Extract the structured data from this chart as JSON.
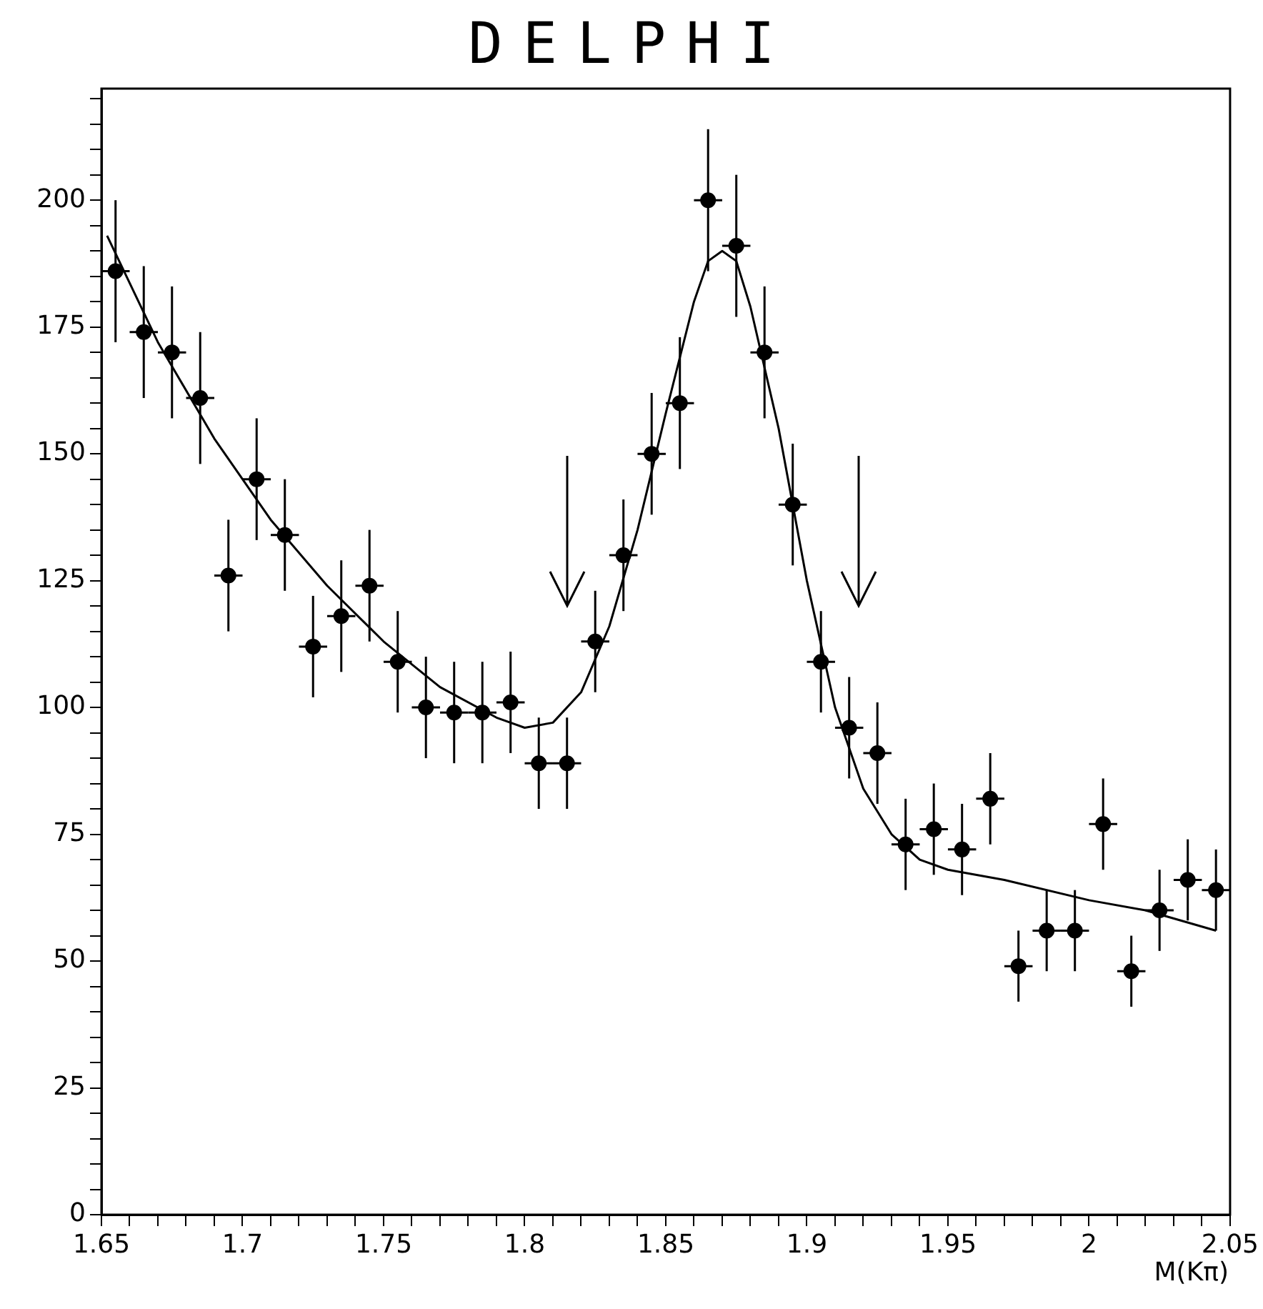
{
  "chart_data": {
    "type": "scatter",
    "title": "DELPHI",
    "xlabel": "M(Kπ)",
    "xlim": [
      1.65,
      2.05
    ],
    "ylim": [
      0,
      222
    ],
    "xticks": [
      {
        "value": 1.65,
        "label": "1.65"
      },
      {
        "value": 1.66,
        "label": null
      },
      {
        "value": 1.67,
        "label": null
      },
      {
        "value": 1.68,
        "label": null
      },
      {
        "value": 1.69,
        "label": null
      },
      {
        "value": 1.7,
        "label": "1.7"
      },
      {
        "value": 1.71,
        "label": null
      },
      {
        "value": 1.72,
        "label": null
      },
      {
        "value": 1.73,
        "label": null
      },
      {
        "value": 1.74,
        "label": null
      },
      {
        "value": 1.75,
        "label": "1.75"
      },
      {
        "value": 1.76,
        "label": null
      },
      {
        "value": 1.77,
        "label": null
      },
      {
        "value": 1.78,
        "label": null
      },
      {
        "value": 1.79,
        "label": null
      },
      {
        "value": 1.8,
        "label": "1.8"
      },
      {
        "value": 1.81,
        "label": null
      },
      {
        "value": 1.82,
        "label": null
      },
      {
        "value": 1.83,
        "label": null
      },
      {
        "value": 1.84,
        "label": null
      },
      {
        "value": 1.85,
        "label": "1.85"
      },
      {
        "value": 1.86,
        "label": null
      },
      {
        "value": 1.87,
        "label": null
      },
      {
        "value": 1.88,
        "label": null
      },
      {
        "value": 1.89,
        "label": null
      },
      {
        "value": 1.9,
        "label": "1.9"
      },
      {
        "value": 1.91,
        "label": null
      },
      {
        "value": 1.92,
        "label": null
      },
      {
        "value": 1.93,
        "label": null
      },
      {
        "value": 1.94,
        "label": null
      },
      {
        "value": 1.95,
        "label": "1.95"
      },
      {
        "value": 1.96,
        "label": null
      },
      {
        "value": 1.97,
        "label": null
      },
      {
        "value": 1.98,
        "label": null
      },
      {
        "value": 1.99,
        "label": null
      },
      {
        "value": 2,
        "label": "2"
      },
      {
        "value": 2.01,
        "label": null
      },
      {
        "value": 2.02,
        "label": null
      },
      {
        "value": 2.03,
        "label": null
      },
      {
        "value": 2.04,
        "label": null
      },
      {
        "value": 2.05,
        "label": "2.05"
      }
    ],
    "yticks": [
      0,
      {
        "value": 5,
        "label": null
      },
      {
        "value": 10,
        "label": null
      },
      {
        "value": 15,
        "label": null
      },
      {
        "value": 20,
        "label": null
      },
      25,
      {
        "value": 30,
        "label": null
      },
      {
        "value": 35,
        "label": null
      },
      {
        "value": 40,
        "label": null
      },
      {
        "value": 45,
        "label": null
      },
      50,
      {
        "value": 55,
        "label": null
      },
      {
        "value": 60,
        "label": null
      },
      {
        "value": 65,
        "label": null
      },
      {
        "value": 70,
        "label": null
      },
      75,
      {
        "value": 80,
        "label": null
      },
      {
        "value": 85,
        "label": null
      },
      {
        "value": 90,
        "label": null
      },
      {
        "value": 95,
        "label": null
      },
      100,
      {
        "value": 105,
        "label": null
      },
      {
        "value": 110,
        "label": null
      },
      {
        "value": 115,
        "label": null
      },
      {
        "value": 120,
        "label": null
      },
      125,
      {
        "value": 130,
        "label": null
      },
      {
        "value": 135,
        "label": null
      },
      {
        "value": 140,
        "label": null
      },
      {
        "value": 145,
        "label": null
      },
      150,
      {
        "value": 155,
        "label": null
      },
      {
        "value": 160,
        "label": null
      },
      {
        "value": 165,
        "label": null
      },
      {
        "value": 170,
        "label": null
      },
      175,
      {
        "value": 180,
        "label": null
      },
      {
        "value": 185,
        "label": null
      },
      {
        "value": 190,
        "label": null
      },
      {
        "value": 195,
        "label": null
      },
      200,
      {
        "value": 205,
        "label": null
      },
      {
        "value": 210,
        "label": null
      },
      {
        "value": 215,
        "label": null
      },
      {
        "value": 220,
        "label": null
      }
    ],
    "grid": false,
    "legend": false,
    "marker": "circle",
    "series": [
      {
        "color": "#000000",
        "x": [
          1.655,
          1.665,
          1.675,
          1.685,
          1.695,
          1.705,
          1.715,
          1.725,
          1.735,
          1.745,
          1.755,
          1.765,
          1.775,
          1.785,
          1.795,
          1.805,
          1.815,
          1.825,
          1.835,
          1.845,
          1.855,
          1.865,
          1.875,
          1.885,
          1.895,
          1.905,
          1.915,
          1.925,
          1.935,
          1.945,
          1.955,
          1.965,
          1.975,
          1.985,
          1.995,
          2.005,
          2.015,
          2.025,
          2.035,
          2.045
        ],
        "values": [
          186,
          174,
          170,
          161,
          126,
          145,
          134,
          112,
          118,
          124,
          109,
          100,
          99,
          99,
          101,
          89,
          89,
          113,
          130,
          150,
          160,
          200,
          191,
          170,
          140,
          109,
          96,
          91,
          73,
          76,
          72,
          82,
          49,
          56,
          56,
          77,
          48,
          60,
          66,
          64
        ],
        "errors": [
          14,
          13,
          13,
          13,
          11,
          12,
          11,
          10,
          11,
          11,
          10,
          10,
          10,
          10,
          10,
          9,
          9,
          10,
          11,
          12,
          13,
          14,
          14,
          13,
          12,
          10,
          10,
          10,
          9,
          9,
          9,
          9,
          7,
          8,
          8,
          9,
          7,
          8,
          8,
          8
        ],
        "xerrors": [
          0.005,
          0.005,
          0.005,
          0.005,
          0.005,
          0.005,
          0.005,
          0.005,
          0.005,
          0.005,
          0.005,
          0.005,
          0.005,
          0.005,
          0.005,
          0.005,
          0.005,
          0.005,
          0.005,
          0.005,
          0.005,
          0.005,
          0.005,
          0.005,
          0.005,
          0.005,
          0.005,
          0.005,
          0.005,
          0.005,
          0.005,
          0.005,
          0.005,
          0.005,
          0.005,
          0.005,
          0.005,
          0.005,
          0.005,
          0.005
        ]
      },
      {
        "type": "line",
        "color": "#000000",
        "marker": "none",
        "line_style": "solid",
        "x": [
          1.652,
          1.67,
          1.69,
          1.71,
          1.73,
          1.75,
          1.77,
          1.79,
          1.8,
          1.81,
          1.82,
          1.83,
          1.84,
          1.85,
          1.86,
          1.865,
          1.87,
          1.875,
          1.88,
          1.89,
          1.9,
          1.91,
          1.92,
          1.93,
          1.94,
          1.95,
          1.97,
          2.0,
          2.02,
          2.045
        ],
        "values": [
          193,
          172,
          153,
          137,
          124,
          113,
          104,
          98,
          96,
          97,
          103,
          116,
          135,
          158,
          180,
          188,
          190,
          188,
          179,
          155,
          125,
          100,
          84,
          75,
          70,
          68,
          66,
          62,
          60,
          56
        ]
      }
    ]
  }
}
